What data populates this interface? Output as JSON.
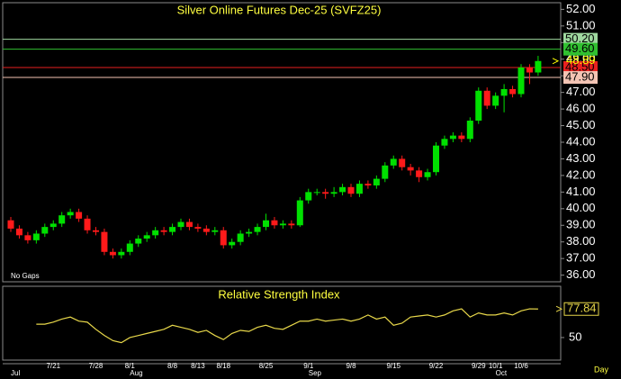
{
  "chart_data": [
    {
      "type": "candlestick",
      "title": "Silver Online Futures Dec-25 (SVFZ25)",
      "annotation": "No Gaps",
      "x_unit": "Day",
      "categories": [
        null,
        null,
        null,
        null,
        null,
        "7/21",
        null,
        null,
        null,
        null,
        "7/28",
        null,
        null,
        null,
        "8/1",
        null,
        null,
        null,
        null,
        "8/8",
        null,
        null,
        "8/13",
        null,
        null,
        "8/18",
        null,
        null,
        null,
        null,
        "8/25",
        null,
        null,
        null,
        null,
        "9/1",
        null,
        null,
        null,
        null,
        "9/8",
        null,
        null,
        null,
        null,
        "9/15",
        null,
        null,
        null,
        null,
        "9/22",
        null,
        null,
        null,
        null,
        "9/29",
        null,
        "10/1",
        null,
        null,
        "10/6",
        null,
        null
      ],
      "months": [
        "Jul",
        null,
        null,
        null,
        null,
        null,
        null,
        null,
        null,
        null,
        null,
        null,
        null,
        null,
        "Aug",
        null,
        null,
        null,
        null,
        null,
        null,
        null,
        null,
        null,
        null,
        null,
        null,
        null,
        null,
        null,
        null,
        null,
        null,
        null,
        null,
        "Sep",
        null,
        null,
        null,
        null,
        null,
        null,
        null,
        null,
        null,
        null,
        null,
        null,
        null,
        null,
        null,
        null,
        null,
        null,
        null,
        null,
        null,
        "Oct",
        null,
        null,
        null,
        null,
        null
      ],
      "open": [
        39.3,
        38.8,
        38.4,
        38.1,
        38.5,
        38.9,
        39.1,
        39.6,
        39.8,
        39.4,
        38.7,
        38.6,
        37.4,
        37.2,
        37.4,
        37.9,
        38.2,
        38.4,
        38.7,
        38.6,
        38.9,
        39.2,
        38.9,
        38.8,
        38.6,
        38.7,
        37.8,
        38.0,
        38.5,
        38.6,
        38.9,
        39.3,
        39.0,
        39.1,
        39.0,
        40.5,
        41.0,
        41.0,
        40.9,
        41.0,
        41.3,
        40.9,
        41.5,
        41.4,
        41.8,
        42.6,
        43.0,
        42.5,
        42.3,
        41.9,
        42.2,
        43.8,
        44.2,
        44.4,
        44.2,
        45.3,
        47.1,
        46.2,
        46.8,
        47.2,
        46.9,
        48.5,
        48.2
      ],
      "high": [
        39.5,
        39.0,
        38.6,
        38.7,
        39.1,
        39.3,
        39.8,
        40.0,
        40.0,
        39.6,
        38.9,
        38.8,
        37.6,
        37.6,
        38.1,
        38.4,
        38.6,
        38.9,
        38.9,
        39.1,
        39.4,
        39.4,
        39.1,
        39.0,
        38.9,
        38.9,
        38.2,
        38.7,
        38.8,
        39.1,
        39.7,
        39.5,
        39.3,
        39.3,
        40.7,
        41.2,
        41.2,
        41.2,
        41.3,
        41.5,
        41.5,
        41.7,
        41.7,
        42.0,
        42.8,
        43.2,
        43.2,
        42.7,
        42.5,
        42.4,
        44.0,
        44.4,
        44.6,
        44.6,
        45.5,
        47.3,
        47.3,
        47.0,
        47.5,
        47.4,
        48.7,
        48.7,
        49.2
      ],
      "low": [
        38.6,
        38.2,
        37.9,
        37.9,
        38.3,
        38.7,
        38.9,
        39.4,
        39.2,
        38.5,
        38.4,
        37.2,
        37.0,
        37.0,
        37.2,
        37.7,
        38.0,
        38.2,
        38.4,
        38.4,
        38.7,
        38.7,
        38.6,
        38.4,
        38.4,
        37.6,
        37.6,
        37.8,
        38.3,
        38.4,
        38.7,
        38.8,
        38.8,
        38.8,
        38.9,
        40.3,
        40.8,
        40.6,
        40.7,
        40.8,
        40.7,
        40.7,
        41.2,
        41.2,
        41.6,
        42.4,
        42.3,
        42.0,
        41.6,
        41.7,
        42.0,
        43.6,
        44.0,
        44.0,
        44.0,
        45.1,
        46.0,
        46.0,
        45.8,
        46.7,
        46.7,
        47.5,
        48.0
      ],
      "close": [
        38.8,
        38.4,
        38.1,
        38.5,
        38.9,
        39.1,
        39.6,
        39.8,
        39.4,
        38.7,
        38.6,
        37.4,
        37.2,
        37.4,
        37.9,
        38.2,
        38.4,
        38.7,
        38.6,
        38.9,
        39.2,
        38.9,
        38.8,
        38.6,
        38.7,
        37.8,
        38.0,
        38.5,
        38.6,
        38.9,
        39.3,
        39.0,
        39.1,
        39.0,
        40.5,
        41.0,
        41.0,
        40.9,
        41.0,
        41.3,
        40.9,
        41.5,
        41.4,
        41.8,
        42.6,
        43.0,
        42.5,
        42.3,
        41.9,
        42.2,
        43.8,
        44.2,
        44.4,
        44.2,
        45.3,
        47.1,
        46.2,
        46.8,
        47.2,
        46.9,
        48.5,
        48.2,
        48.89
      ],
      "up_color": "#00e000",
      "down_color": "#ff1a1a",
      "last_color": "#ffff00",
      "levels": [
        {
          "value": 50.2,
          "label": "50.20",
          "color": "#9fd89f"
        },
        {
          "value": 49.6,
          "label": "49.60",
          "color": "#30c030"
        },
        {
          "value": 48.5,
          "label": "48.50",
          "color": "#e82020"
        },
        {
          "value": 47.9,
          "label": "47.90",
          "color": "#f3c4b4"
        }
      ],
      "ylim": [
        35.6,
        52.4
      ],
      "yticks": [
        {
          "value": 36,
          "label": "36.00"
        },
        {
          "value": 37,
          "label": "37.00"
        },
        {
          "value": 38,
          "label": "38.00"
        },
        {
          "value": 39,
          "label": "39.00"
        },
        {
          "value": 40,
          "label": "40.00"
        },
        {
          "value": 41,
          "label": "41.00"
        },
        {
          "value": 42,
          "label": "42.00"
        },
        {
          "value": 43,
          "label": "43.00"
        },
        {
          "value": 44,
          "label": "44.00"
        },
        {
          "value": 45,
          "label": "45.00"
        },
        {
          "value": 46,
          "label": "46.00"
        },
        {
          "value": 47,
          "label": "47.00"
        },
        {
          "value": 48,
          "label": "48.00"
        },
        {
          "value": 49,
          "label": "49.00"
        },
        {
          "value": 50,
          "label": "50.00"
        },
        {
          "value": 51,
          "label": "51.00"
        },
        {
          "value": 52,
          "label": "52.00"
        }
      ]
    },
    {
      "type": "line",
      "title": "Relative Strength Index",
      "series": [
        {
          "name": "RSI",
          "color": "#e8d84a",
          "values": [
            null,
            null,
            null,
            63,
            63,
            65,
            68,
            70,
            66,
            65,
            58,
            52,
            47,
            45,
            50,
            52,
            54,
            56,
            58,
            62,
            60,
            58,
            55,
            57,
            52,
            48,
            54,
            57,
            56,
            60,
            62,
            59,
            58,
            62,
            66,
            66,
            68,
            66,
            67,
            68,
            66,
            68,
            72,
            68,
            70,
            62,
            64,
            70,
            71,
            72,
            70,
            72,
            76,
            78,
            70,
            74,
            72,
            72,
            74,
            72,
            76,
            78,
            77.84
          ]
        }
      ],
      "ylim": [
        28,
        100
      ],
      "yticks": [
        50
      ]
    }
  ]
}
